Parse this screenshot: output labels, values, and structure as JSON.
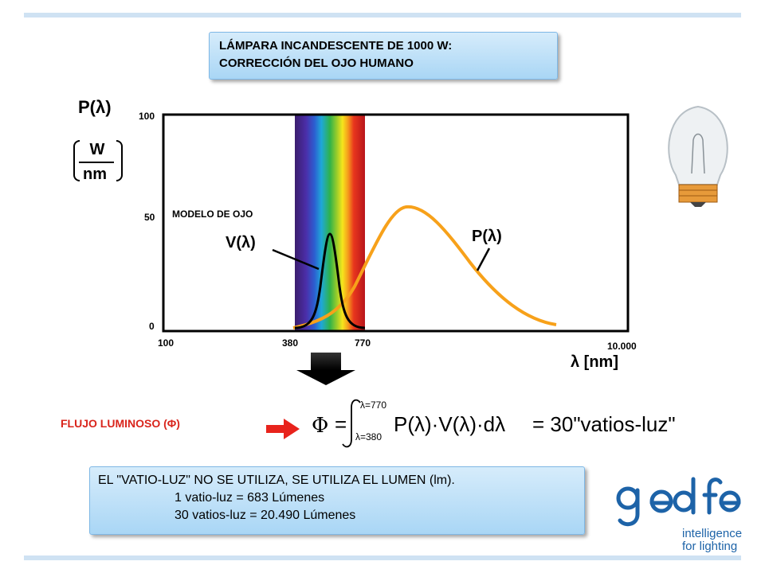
{
  "title": {
    "line1": "LÁMPARA INCANDESCENTE DE 1000 W:",
    "line2": "CORRECCIÓN DEL OJO HUMANO"
  },
  "y_axis": {
    "label": "P(λ)",
    "unit_numerator": "W",
    "unit_denominator": "nm",
    "ticks": [
      "100",
      "50",
      "0"
    ]
  },
  "x_axis": {
    "ticks": [
      "100",
      "380",
      "770",
      "10.000"
    ],
    "label": "λ [nm]"
  },
  "annotations": {
    "eye_model": "MODELO DE OJO",
    "v_label": "V(λ)",
    "p_label": "P(λ)"
  },
  "colors": {
    "power_curve": "#f7a11a",
    "eye_curve": "#000000",
    "arrow_red": "#e8231c"
  },
  "flux": {
    "label": "FLUJO LUMINOSO (Φ)",
    "formula": {
      "phi": "Φ",
      "eq": "=",
      "upper_limit": "λ=770",
      "lower_limit": "λ=380",
      "integrand": "P(λ)·V(λ)·dλ",
      "result": "= 30\"vatios-luz\""
    }
  },
  "info": {
    "line1": "EL \"VATIO-LUZ\" NO SE UTILIZA, SE UTILIZA EL LUMEN (lm).",
    "line2": "1 vatio-luz = 683 Lúmenes",
    "line3": "30 vatios-luz = 20.490 Lúmenes"
  },
  "logo": {
    "wordmark": "gedfe",
    "tagline1": "intelligence",
    "tagline2": "for lighting",
    "icon": "lightbulb-icon"
  }
}
